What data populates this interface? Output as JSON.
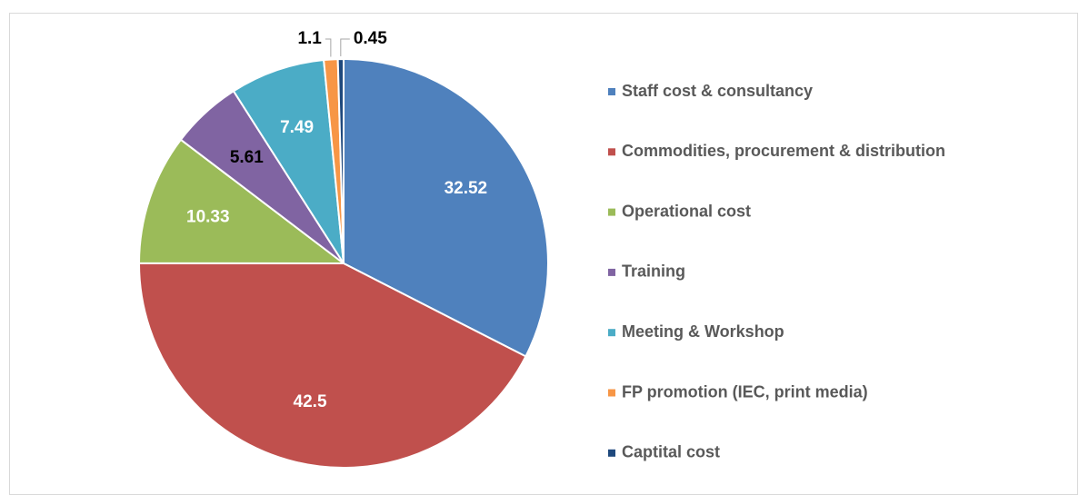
{
  "chart_data": {
    "type": "pie",
    "categories": [
      "Staff cost & consultancy",
      "Commodities, procurement & distribution",
      "Operational cost",
      "Training",
      "Meeting & Workshop",
      "FP promotion (IEC, print media)",
      "Captital cost"
    ],
    "values": [
      32.52,
      42.5,
      10.33,
      5.61,
      7.49,
      1.1,
      0.45
    ],
    "colors": [
      "#4f81bd",
      "#c0504d",
      "#9bbb59",
      "#8064a2",
      "#4bacc6",
      "#f79646",
      "#1f497d"
    ],
    "label_colors": [
      "#ffffff",
      "#ffffff",
      "#ffffff",
      "#000000",
      "#ffffff",
      "#000000",
      "#000000"
    ],
    "legend": "right"
  }
}
